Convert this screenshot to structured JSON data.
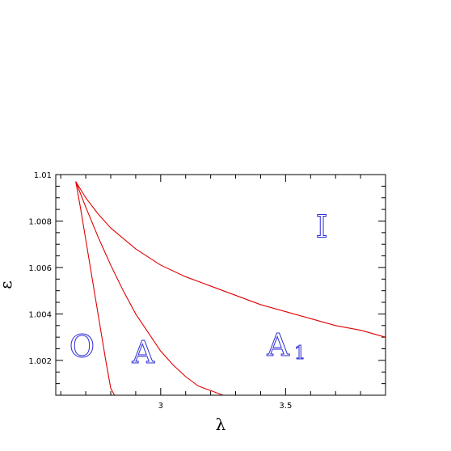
{
  "chart_data": {
    "type": "line",
    "title": "",
    "xlabel": "λ",
    "ylabel": "ε",
    "xlim": [
      2.58,
      3.9
    ],
    "ylim": [
      1.0005,
      1.01
    ],
    "x_ticks": [
      {
        "value": 3,
        "label": "3"
      },
      {
        "value": 3.5,
        "label": "3.5"
      }
    ],
    "y_ticks": [
      {
        "value": 1.002,
        "label": "1.002"
      },
      {
        "value": 1.004,
        "label": "1.004"
      },
      {
        "value": 1.006,
        "label": "1.006"
      },
      {
        "value": 1.008,
        "label": "1.008"
      },
      {
        "value": 1.01,
        "label": "1.01"
      }
    ],
    "x_minor_step": 0.1,
    "y_minor_step": 0.0005,
    "grid": false,
    "line_color": "#e00000",
    "series": [
      {
        "x": [
          2.66,
          2.68,
          2.7,
          2.72,
          2.74,
          2.76,
          2.78,
          2.8,
          2.815
        ],
        "y": [
          1.0097,
          1.0085,
          1.0072,
          1.0059,
          1.0046,
          1.0033,
          1.002,
          1.0008,
          1.0005
        ]
      },
      {
        "x": [
          2.66,
          2.7,
          2.75,
          2.8,
          2.85,
          2.9,
          2.95,
          3.0,
          3.05,
          3.1,
          3.15,
          3.2,
          3.25,
          3.28
        ],
        "y": [
          1.0097,
          1.0086,
          1.0073,
          1.0061,
          1.005,
          1.004,
          1.0032,
          1.0024,
          1.0018,
          1.0013,
          1.0009,
          1.0007,
          1.0005,
          1.0005
        ]
      },
      {
        "x": [
          2.66,
          2.7,
          2.75,
          2.8,
          2.9,
          3.0,
          3.1,
          3.2,
          3.3,
          3.4,
          3.5,
          3.6,
          3.7,
          3.8,
          3.9
        ],
        "y": [
          1.0097,
          1.009,
          1.0083,
          1.0077,
          1.0068,
          1.0061,
          1.0056,
          1.0052,
          1.0048,
          1.0044,
          1.0041,
          1.0038,
          1.0035,
          1.0033,
          1.003
        ]
      }
    ],
    "annotations": [
      {
        "text": "O",
        "x": 2.685,
        "y": 1.00215,
        "size": 38
      },
      {
        "text": "A",
        "x": 2.93,
        "y": 1.0019,
        "size": 38
      },
      {
        "text": "A",
        "x": 3.47,
        "y": 1.0022,
        "size": 38,
        "subscript": "1"
      },
      {
        "text": "I",
        "x": 3.645,
        "y": 1.0073,
        "size": 38
      }
    ],
    "label_color": "#2b2bd6"
  }
}
